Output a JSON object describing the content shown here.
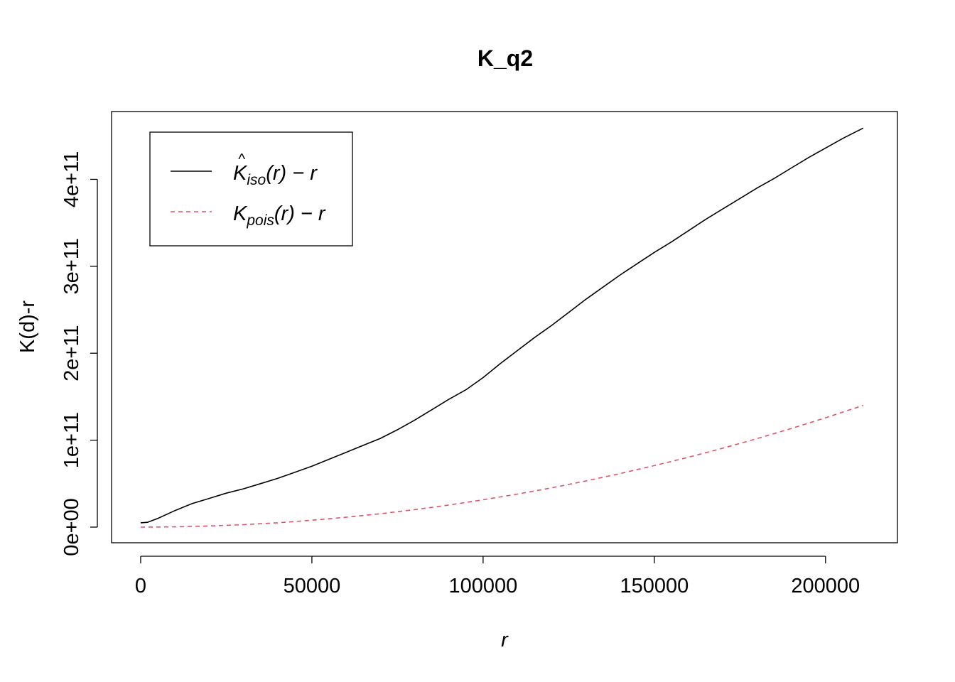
{
  "chart_data": {
    "type": "line",
    "title": "K_q2",
    "xlabel": "r",
    "ylabel": "K(d)-r",
    "xlim": [
      -8500,
      221000
    ],
    "ylim": [
      -18000000000,
      478000000000
    ],
    "x_ticks": [
      0,
      50000,
      100000,
      150000,
      200000
    ],
    "x_tick_labels": [
      "0",
      "50000",
      "100000",
      "150000",
      "200000"
    ],
    "y_ticks": [
      0,
      100000000000,
      200000000000,
      300000000000,
      400000000000
    ],
    "y_tick_labels": [
      "0e+00",
      "1e+11",
      "2e+11",
      "3e+11",
      "4e+11"
    ],
    "grid": false,
    "legend_position": "top-left",
    "series": [
      {
        "name": "K̂iso(r) − r",
        "legend": {
          "main": "K",
          "hat": "^",
          "sub": "iso",
          "rest": "(r) − r"
        },
        "color": "#000000",
        "dash": "solid",
        "x": [
          0,
          2000,
          5000,
          10000,
          15000,
          20000,
          25000,
          30000,
          35000,
          40000,
          45000,
          50000,
          55000,
          60000,
          65000,
          70000,
          75000,
          80000,
          85000,
          90000,
          95000,
          100000,
          105000,
          110000,
          115000,
          120000,
          125000,
          130000,
          135000,
          140000,
          145000,
          150000,
          155000,
          160000,
          165000,
          170000,
          175000,
          180000,
          185000,
          190000,
          195000,
          200000,
          205000,
          211000
        ],
        "y": [
          5000000000,
          5500000000,
          10000000000,
          19000000000,
          27000000000,
          33000000000,
          39000000000,
          44000000000,
          50000000000,
          56000000000,
          63000000000,
          70000000000,
          78000000000,
          86000000000,
          94000000000,
          102000000000,
          112000000000,
          123000000000,
          135000000000,
          147000000000,
          158000000000,
          172000000000,
          188000000000,
          203000000000,
          218000000000,
          232000000000,
          247000000000,
          262000000000,
          276000000000,
          290000000000,
          303000000000,
          316000000000,
          328000000000,
          341000000000,
          354000000000,
          366000000000,
          378000000000,
          390000000000,
          401000000000,
          413000000000,
          425000000000,
          436000000000,
          447000000000,
          459000000000
        ]
      },
      {
        "name": "Kpois(r) − r",
        "legend": {
          "main": "K",
          "hat": "",
          "sub": "pois",
          "rest": "(r) − r"
        },
        "color": "#DF536B",
        "dash": "dashed",
        "x": [
          0,
          10000,
          20000,
          30000,
          40000,
          50000,
          60000,
          70000,
          80000,
          90000,
          100000,
          110000,
          120000,
          130000,
          140000,
          150000,
          160000,
          170000,
          180000,
          190000,
          200000,
          211000
        ],
        "y": [
          0,
          300000000,
          1300000000,
          2800000000,
          5000000000,
          7900000000,
          11300000000,
          15400000000,
          20100000000,
          25400000000,
          31400000000,
          38000000000,
          45200000000,
          53100000000,
          61600000000,
          70700000000,
          80400000000,
          90800000000,
          101800000000,
          113400000000,
          125700000000,
          140000000000
        ]
      }
    ]
  }
}
